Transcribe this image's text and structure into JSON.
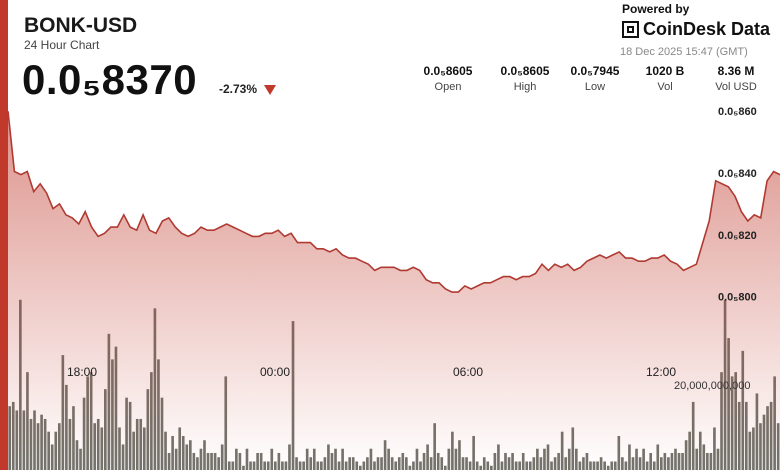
{
  "header": {
    "ticker": "BONK-USD",
    "subtitle": "24 Hour Chart",
    "price": "0.0₅8370",
    "change": "-2.73%",
    "direction_icon": "down-triangle-icon",
    "down_color": "#c0392b"
  },
  "branding": {
    "powered_by": "Powered by",
    "name": "CoinDesk Data",
    "logo_icon": "coindesk-logo-icon",
    "timestamp": "18 Dec 2025 15:47 (GMT)"
  },
  "stats": [
    {
      "value": "0.0₅8605",
      "label": "Open"
    },
    {
      "value": "0.0₅8605",
      "label": "High"
    },
    {
      "value": "0.0₅7945",
      "label": "Low"
    },
    {
      "value": "1020 B",
      "label": "Vol"
    },
    {
      "value": "8.36 M",
      "label": "Vol USD"
    }
  ],
  "chart_data": {
    "type": "line",
    "ylim": [
      7.86e-06,
      8.62e-06
    ],
    "y_ticks": [
      {
        "value": 8.6e-06,
        "label": "0.0₅860"
      },
      {
        "value": 8.4e-06,
        "label": "0.0₅840"
      },
      {
        "value": 8.2e-06,
        "label": "0.0₅820"
      },
      {
        "value": 8e-06,
        "label": "0.0₅800"
      }
    ],
    "x_ticks": [
      {
        "t": 2.3,
        "label": "18:00"
      },
      {
        "t": 8.3,
        "label": "00:00"
      },
      {
        "t": 14.3,
        "label": "06:00"
      },
      {
        "t": 20.3,
        "label": "12:00"
      }
    ],
    "xlim": [
      0,
      24
    ],
    "line_color": "#b03a32",
    "fill_color": "#c0392b",
    "price": {
      "t": [
        0,
        0.2,
        0.4,
        0.6,
        0.8,
        1.0,
        1.2,
        1.4,
        1.6,
        1.8,
        2.0,
        2.2,
        2.4,
        2.6,
        2.8,
        3.0,
        3.2,
        3.4,
        3.6,
        3.8,
        4.0,
        4.2,
        4.4,
        4.6,
        4.8,
        5.0,
        5.2,
        5.4,
        5.6,
        5.8,
        6.0,
        6.2,
        6.4,
        6.6,
        6.8,
        7.0,
        7.2,
        7.4,
        7.6,
        7.8,
        8.0,
        8.2,
        8.4,
        8.6,
        8.8,
        9.0,
        9.2,
        9.4,
        9.6,
        9.8,
        10.0,
        10.2,
        10.4,
        10.6,
        10.8,
        11.0,
        11.2,
        11.4,
        11.6,
        11.8,
        12.0,
        12.2,
        12.4,
        12.6,
        12.8,
        13.0,
        13.2,
        13.4,
        13.6,
        13.8,
        14.0,
        14.2,
        14.4,
        14.6,
        14.8,
        15.0,
        15.2,
        15.4,
        15.6,
        15.8,
        16.0,
        16.2,
        16.4,
        16.6,
        16.8,
        17.0,
        17.2,
        17.4,
        17.6,
        17.8,
        18.0,
        18.2,
        18.4,
        18.6,
        18.8,
        19.0,
        19.2,
        19.4,
        19.6,
        19.8,
        20.0,
        20.2,
        20.4,
        20.6,
        20.8,
        21.0,
        21.2,
        21.4,
        21.6,
        21.8,
        22.0,
        22.2,
        22.4,
        22.6,
        22.8,
        23.0,
        23.2,
        23.4,
        23.6,
        23.8,
        24.0
      ],
      "v": [
        8.6e-06,
        8.405e-06,
        8.395e-06,
        8.405e-06,
        8.34e-06,
        8.365e-06,
        8.335e-06,
        8.285e-06,
        8.3e-06,
        8.265e-06,
        8.255e-06,
        8.235e-06,
        8.275e-06,
        8.225e-06,
        8.195e-06,
        8.205e-06,
        8.225e-06,
        8.225e-06,
        8.265e-06,
        8.225e-06,
        8.215e-06,
        8.265e-06,
        8.215e-06,
        8.205e-06,
        8.245e-06,
        8.255e-06,
        8.225e-06,
        8.205e-06,
        8.195e-06,
        8.205e-06,
        8.225e-06,
        8.215e-06,
        8.215e-06,
        8.225e-06,
        8.235e-06,
        8.225e-06,
        8.215e-06,
        8.205e-06,
        8.195e-06,
        8.195e-06,
        8.205e-06,
        8.205e-06,
        8.215e-06,
        8.195e-06,
        8.205e-06,
        8.175e-06,
        8.175e-06,
        8.175e-06,
        8.155e-06,
        8.155e-06,
        8.145e-06,
        8.155e-06,
        8.135e-06,
        8.125e-06,
        8.125e-06,
        8.115e-06,
        8.105e-06,
        8.085e-06,
        8.095e-06,
        8.095e-06,
        8.095e-06,
        8.085e-06,
        8.085e-06,
        8.095e-06,
        8.085e-06,
        8.055e-06,
        8.045e-06,
        8.045e-06,
        8.025e-06,
        8.015e-06,
        8.015e-06,
        8.035e-06,
        8.025e-06,
        8.035e-06,
        8.045e-06,
        8.045e-06,
        8.055e-06,
        8.065e-06,
        8.065e-06,
        8.055e-06,
        8.065e-06,
        8.065e-06,
        8.075e-06,
        8.105e-06,
        8.085e-06,
        8.105e-06,
        8.095e-06,
        8.105e-06,
        8.085e-06,
        8.095e-06,
        8.115e-06,
        8.125e-06,
        8.135e-06,
        8.125e-06,
        8.135e-06,
        8.145e-06,
        8.125e-06,
        8.125e-06,
        8.115e-06,
        8.115e-06,
        8.125e-06,
        8.125e-06,
        8.135e-06,
        8.115e-06,
        8.105e-06,
        8.085e-06,
        8.095e-06,
        8.105e-06,
        8.175e-06,
        8.245e-06,
        8.375e-06,
        8.365e-06,
        8.355e-06,
        8.325e-06,
        8.275e-06,
        8.245e-06,
        8.265e-06,
        8.255e-06,
        8.375e-06,
        8.405e-06,
        8.395e-06
      ]
    },
    "volume": {
      "label": "20,000,000,000",
      "label_value": 20000000000,
      "max": 47000000000,
      "bar_color": "#5a5a52",
      "values": [
        15000000000,
        16000000000,
        14000000000,
        40000000000,
        14000000000,
        23000000000,
        12000000000,
        14000000000,
        11000000000,
        13000000000,
        12000000000,
        9000000000,
        6000000000,
        9000000000,
        11000000000,
        27000000000,
        20000000000,
        12000000000,
        15000000000,
        7000000000,
        5000000000,
        17000000000,
        22000000000,
        23000000000,
        11000000000,
        12000000000,
        10000000000,
        19000000000,
        32000000000,
        26000000000,
        29000000000,
        10000000000,
        6000000000,
        17000000000,
        16000000000,
        9000000000,
        12000000000,
        12000000000,
        10000000000,
        19000000000,
        23000000000,
        38000000000,
        26000000000,
        17000000000,
        9000000000,
        4000000000,
        8000000000,
        5000000000,
        10000000000,
        8000000000,
        6000000000,
        7000000000,
        4000000000,
        3000000000,
        5000000000,
        7000000000,
        4000000000,
        4000000000,
        4000000000,
        3000000000,
        6000000000,
        22000000000,
        2000000000,
        2000000000,
        5000000000,
        4000000000,
        1000000000,
        5000000000,
        2000000000,
        2000000000,
        4000000000,
        4000000000,
        2000000000,
        2000000000,
        5000000000,
        2000000000,
        4000000000,
        2000000000,
        2000000000,
        6000000000,
        35000000000,
        3000000000,
        2000000000,
        2000000000,
        5000000000,
        3000000000,
        5000000000,
        2000000000,
        2000000000,
        3000000000,
        6000000000,
        4000000000,
        5000000000,
        2000000000,
        5000000000,
        2000000000,
        3000000000,
        3000000000,
        2000000000,
        1000000000,
        2000000000,
        3000000000,
        5000000000,
        2000000000,
        3000000000,
        3000000000,
        7000000000,
        5000000000,
        3000000000,
        2000000000,
        3000000000,
        4000000000,
        3000000000,
        1000000000,
        2000000000,
        5000000000,
        2000000000,
        4000000000,
        6000000000,
        3000000000,
        11000000000,
        4000000000,
        3000000000,
        1000000000,
        5000000000,
        9000000000,
        5000000000,
        7000000000,
        3000000000,
        3000000000,
        2000000000,
        8000000000,
        2000000000,
        1000000000,
        3000000000,
        2000000000,
        1000000000,
        4000000000,
        6000000000,
        2000000000,
        4000000000,
        3000000000,
        4000000000,
        2000000000,
        2000000000,
        4000000000,
        2000000000,
        2000000000,
        3000000000,
        5000000000,
        3000000000,
        5000000000,
        6000000000,
        2000000000,
        3000000000,
        4000000000,
        9000000000,
        3000000000,
        5000000000,
        10000000000,
        5000000000,
        2000000000,
        3000000000,
        4000000000,
        2000000000,
        2000000000,
        2000000000,
        3000000000,
        2000000000,
        1000000000,
        2000000000,
        2000000000,
        8000000000,
        3000000000,
        2000000000,
        6000000000,
        3000000000,
        5000000000,
        3000000000,
        5000000000,
        2000000000,
        4000000000,
        2000000000,
        6000000000,
        3000000000,
        4000000000,
        3000000000,
        4000000000,
        5000000000,
        4000000000,
        4000000000,
        7000000000,
        9000000000,
        16000000000,
        5000000000,
        9000000000,
        6000000000,
        4000000000,
        4000000000,
        10000000000,
        5000000000,
        23000000000,
        40000000000,
        31000000000,
        22000000000,
        23000000000,
        16000000000,
        28000000000,
        16000000000,
        9000000000,
        10000000000,
        18000000000,
        11000000000,
        13000000000,
        15000000000,
        16000000000,
        22000000000,
        11000000000
      ]
    }
  }
}
